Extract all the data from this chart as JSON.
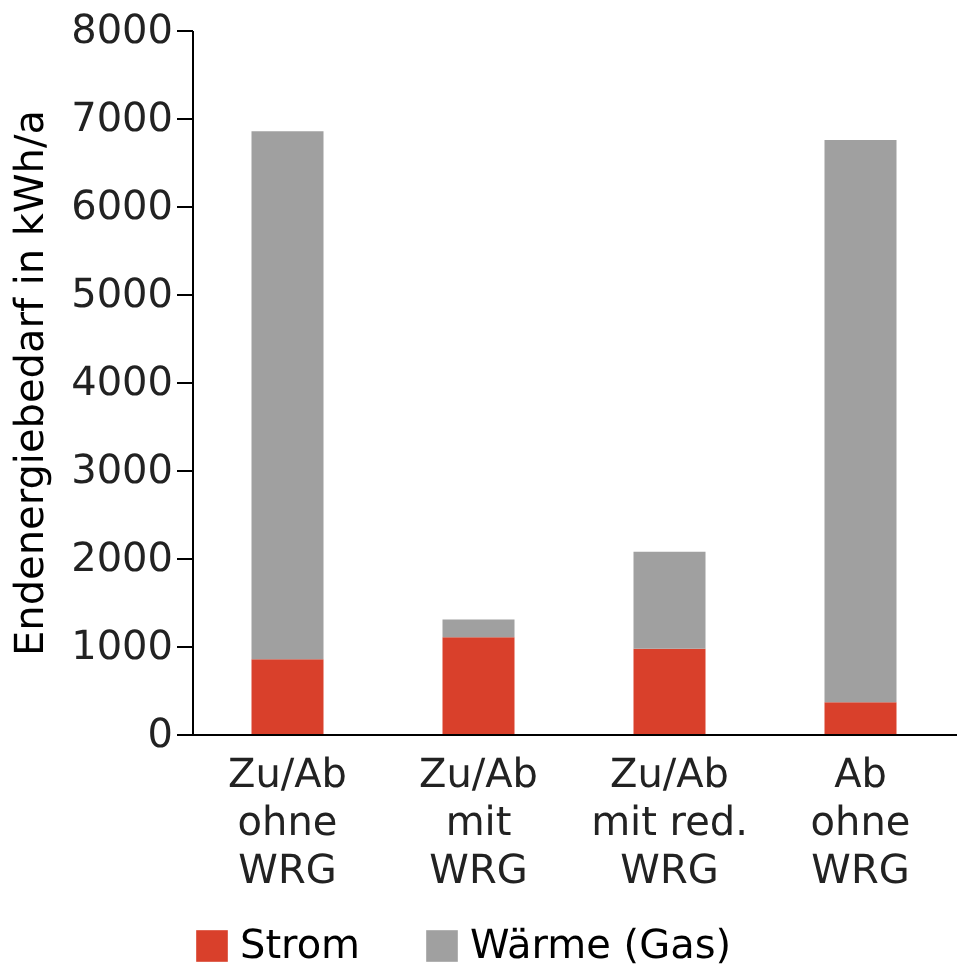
{
  "chart_data": {
    "type": "bar",
    "stacked": true,
    "ylabel": "Endenergiebedarf in kWh/a",
    "categories": [
      "Zu/Ab\nohne\nWRG",
      "Zu/Ab\nmit\nWRG",
      "Zu/Ab\nmit red.\nWRG",
      "Ab\nohne\nWRG"
    ],
    "series": [
      {
        "name": "Strom",
        "color": "#d9402b",
        "values": [
          850,
          1100,
          970,
          360
        ]
      },
      {
        "name": "Wärme (Gas)",
        "color": "#a0a0a0",
        "values": [
          6000,
          200,
          1100,
          6390
        ]
      }
    ],
    "ylim": [
      0,
      8000
    ],
    "yticks": [
      0,
      1000,
      2000,
      3000,
      4000,
      5000,
      6000,
      7000,
      8000
    ],
    "grid": false,
    "legend": "bottom"
  }
}
